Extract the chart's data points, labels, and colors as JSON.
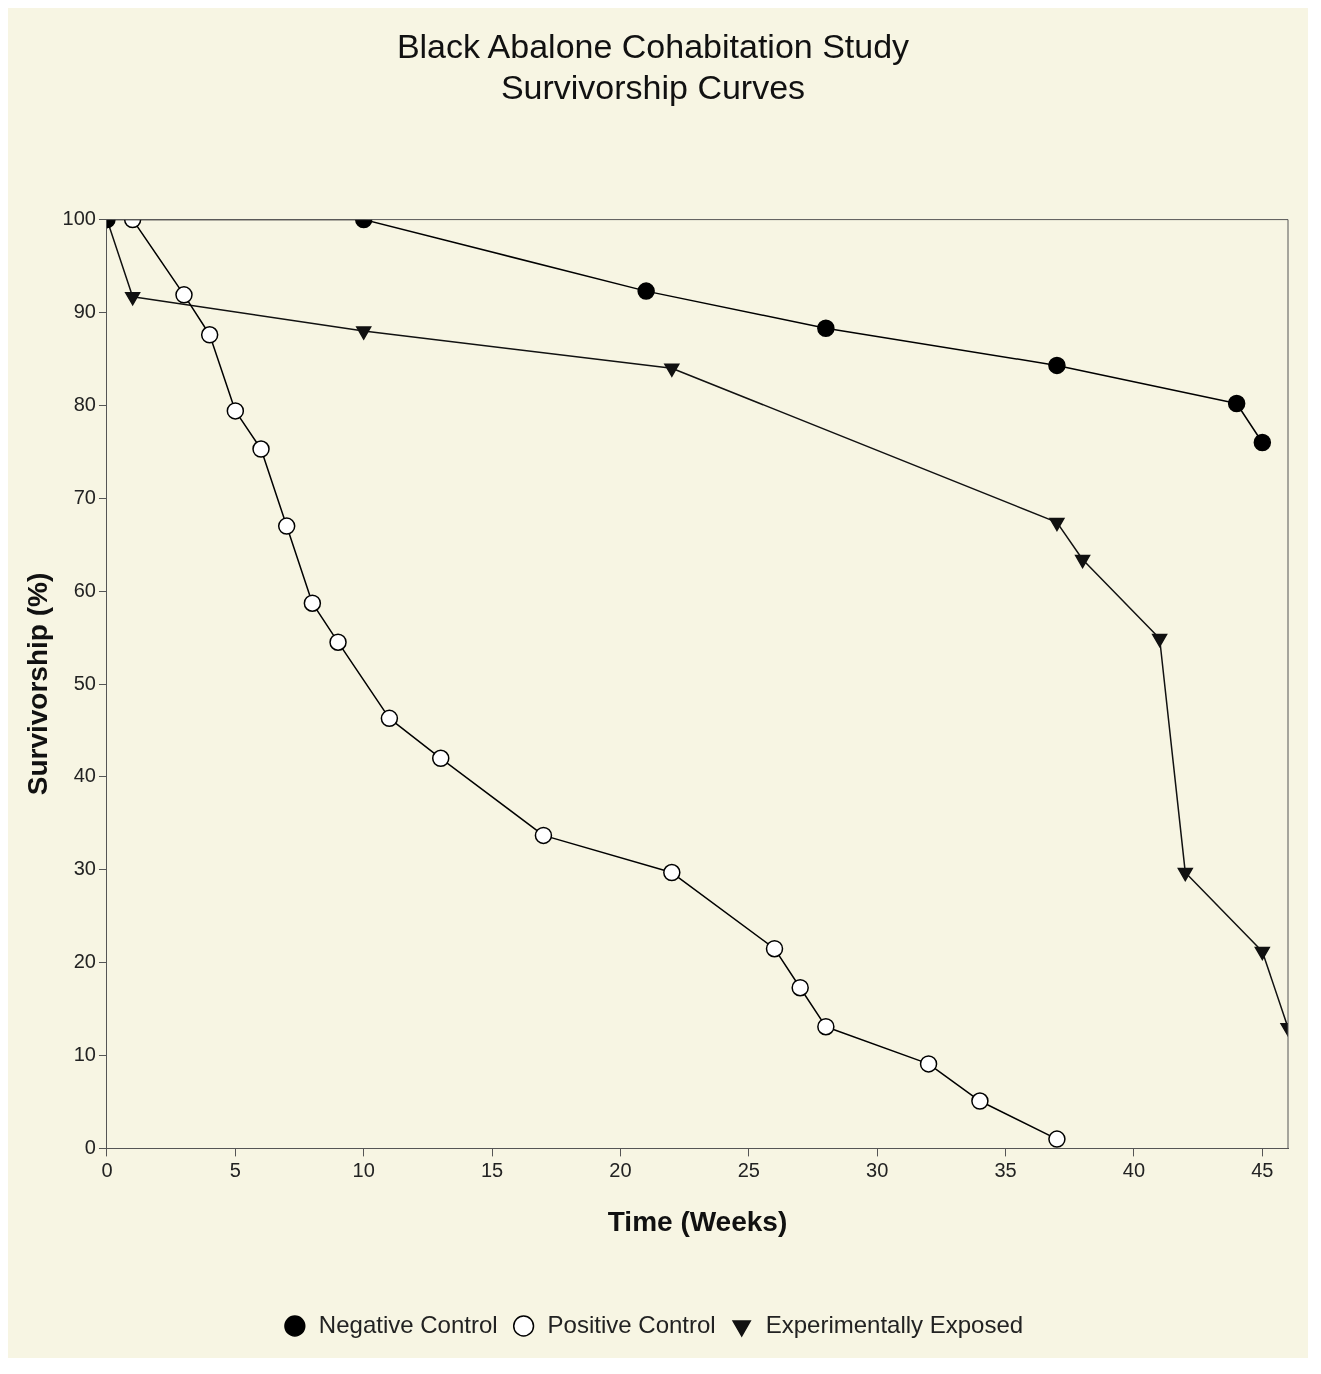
{
  "chart_data": {
    "type": "line",
    "title": "Black Abalone Cohabitation Study",
    "subtitle": "Survivorship Curves",
    "xlabel": "Time (Weeks)",
    "ylabel": "Survivorship (%)",
    "xlim": [
      0,
      46
    ],
    "xticks": [
      0,
      5,
      10,
      15,
      20,
      25,
      30,
      35,
      40,
      45
    ],
    "ylim": [
      0,
      100
    ],
    "yticks": [
      0,
      10,
      20,
      30,
      40,
      50,
      60,
      70,
      80,
      90,
      100
    ],
    "grid": false,
    "legend": "bottom",
    "line_style": "solid",
    "series": [
      {
        "name": "Negative Control",
        "color": "#000000",
        "marker": "circle",
        "x": [
          0,
          10,
          21,
          28,
          37,
          44,
          45
        ],
        "values": [
          100,
          100,
          92.3,
          88.3,
          84.3,
          80.2,
          76
        ]
      },
      {
        "name": "Positive Control",
        "color": "#000000",
        "marker": "circle",
        "colors": [
          "#ffffff",
          "#ffffff",
          "#ffffff",
          "#ffffff",
          "#ffffff",
          "#ffffff",
          "#ffffff",
          "#ffffff",
          "#ffffff",
          "#ffffff",
          "#ffffff",
          "#ffffff",
          "#ffffff",
          "#ffffff",
          "#ffffff",
          "#ffffff",
          "#ffffff",
          "#ffffff"
        ],
        "x": [
          1,
          3,
          4,
          5,
          6,
          7,
          8,
          9,
          11,
          13,
          17,
          22,
          26,
          27,
          28,
          32,
          34,
          37
        ],
        "values": [
          100,
          91.9,
          87.6,
          79.4,
          75.3,
          67,
          58.7,
          54.5,
          46.3,
          42,
          33.7,
          29.7,
          21.5,
          17.3,
          13.1,
          9.1,
          5.1,
          1
        ]
      },
      {
        "name": "Experimentally Exposed",
        "color": "#111111",
        "marker": "triangle",
        "x": [
          0,
          1,
          10,
          22,
          37,
          38,
          41,
          42,
          45,
          46
        ],
        "values": [
          100,
          91.7,
          88,
          84,
          67.4,
          63.4,
          54.9,
          29.7,
          21.2,
          13
        ]
      }
    ]
  }
}
